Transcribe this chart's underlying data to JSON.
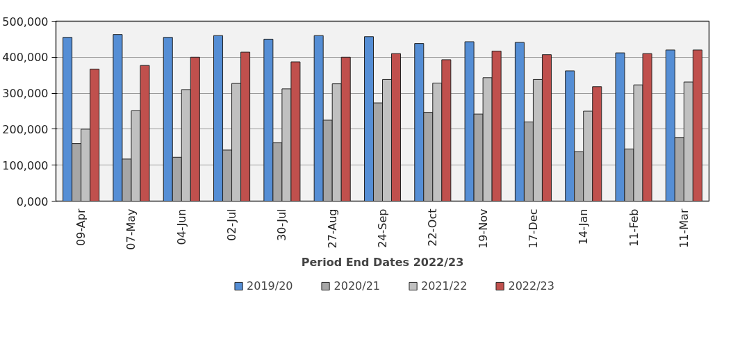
{
  "chart_data": {
    "type": "bar",
    "xlabel": "Period End Dates 2022/23",
    "categories": [
      "09-Apr",
      "07-May",
      "04-Jun",
      "02-Jul",
      "30-Jul",
      "27-Aug",
      "24-Sep",
      "22-Oct",
      "19-Nov",
      "17-Dec",
      "14-Jan",
      "11-Feb",
      "11-Mar"
    ],
    "series": [
      {
        "name": "2019/20",
        "color": "#558ed5",
        "values": [
          455000,
          463000,
          455000,
          460000,
          450000,
          460000,
          457000,
          438000,
          443000,
          441000,
          362000,
          412000,
          420000
        ]
      },
      {
        "name": "2020/21",
        "color": "#a6a6a6",
        "values": [
          160000,
          117000,
          122000,
          142000,
          162000,
          225000,
          273000,
          247000,
          242000,
          220000,
          137000,
          145000,
          177000
        ]
      },
      {
        "name": "2021/22",
        "color": "#c0c0c0",
        "values": [
          200000,
          251000,
          310000,
          327000,
          312000,
          326000,
          338000,
          328000,
          343000,
          338000,
          250000,
          323000,
          331000
        ]
      },
      {
        "name": "2022/23",
        "color": "#c0504d",
        "values": [
          367000,
          377000,
          400000,
          414000,
          387000,
          400000,
          410000,
          393000,
          417000,
          407000,
          318000,
          410000,
          420000
        ]
      }
    ],
    "ylim": [
      0,
      500000
    ],
    "yticks": [
      {
        "value": 0,
        "label": "0,000"
      },
      {
        "value": 100000,
        "label": "100,000"
      },
      {
        "value": 200000,
        "label": "200,000"
      },
      {
        "value": 300000,
        "label": "300,000"
      },
      {
        "value": 400000,
        "label": "400,000"
      },
      {
        "value": 500000,
        "label": "500,000"
      }
    ],
    "grid": "y",
    "legend": "bottom"
  }
}
